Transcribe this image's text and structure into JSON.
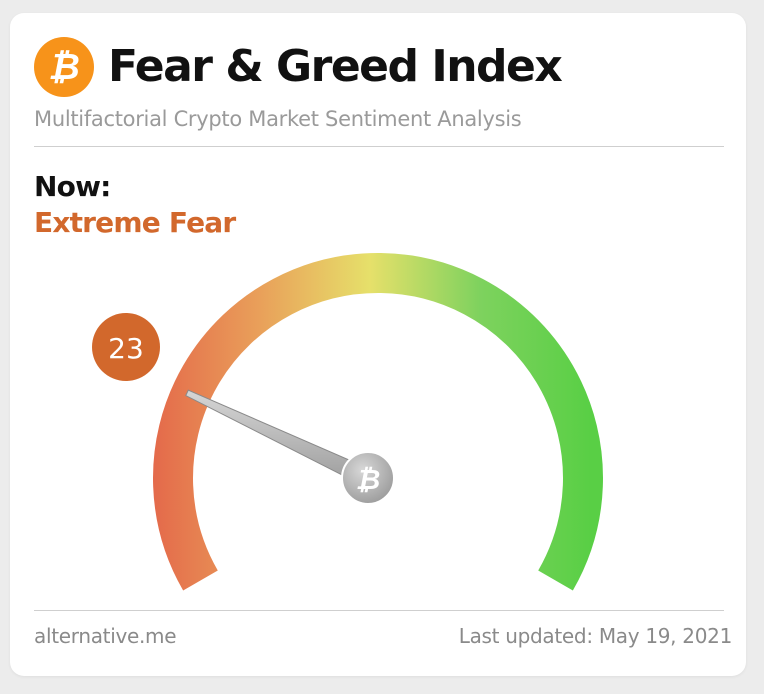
{
  "header": {
    "title": "Fear & Greed Index",
    "subtitle": "Multifactorial Crypto Market Sentiment Analysis",
    "logo_icon": "bitcoin-logo-icon",
    "logo_glyph": "₿"
  },
  "current": {
    "label": "Now:",
    "classification": "Extreme Fear",
    "value": "23",
    "value_fraction": 0.23
  },
  "gauge": {
    "min": 0,
    "max": 100,
    "hub_glyph": "₿",
    "gradient_colors": [
      "#e4684a",
      "#e9a05a",
      "#e6e06a",
      "#7ed25e",
      "#59cf45"
    ]
  },
  "footer": {
    "source": "alternative.me",
    "last_updated": "Last updated: May 19, 2021"
  },
  "colors": {
    "accent": "#d2682c",
    "logo": "#f7931a",
    "badge": "#d2682c"
  }
}
